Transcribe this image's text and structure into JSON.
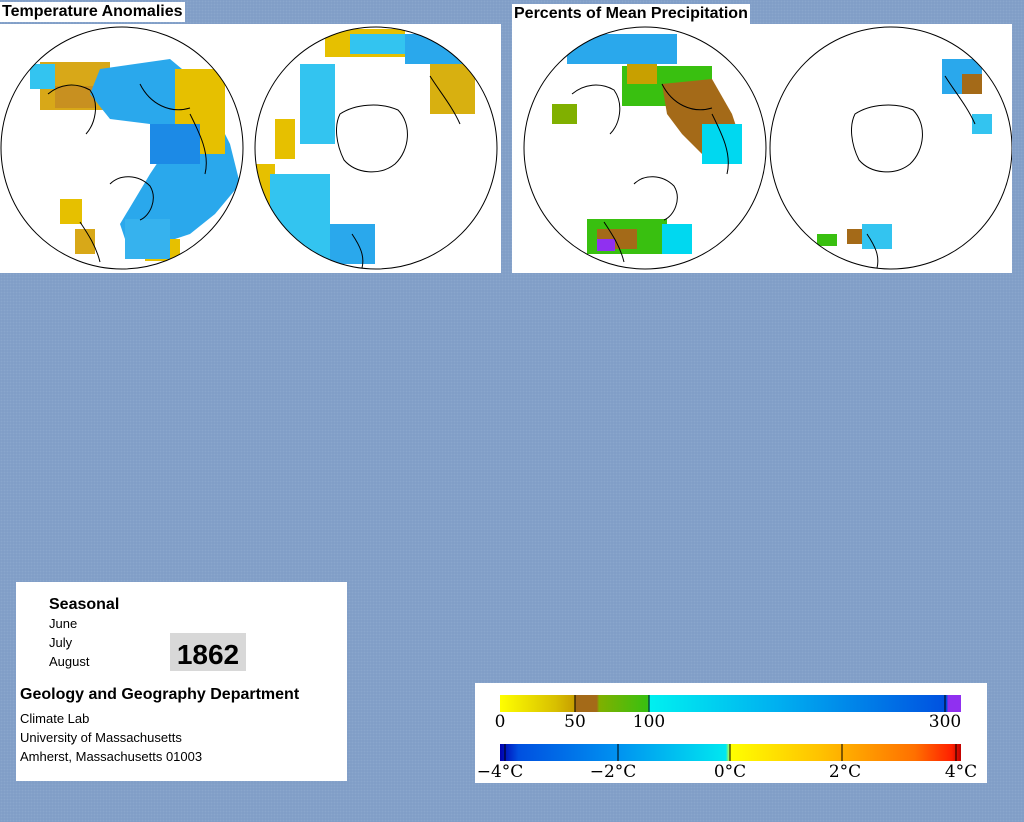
{
  "panels": {
    "temperature": {
      "title": "Temperature Anomalies"
    },
    "precipitation": {
      "title": "Percents of Mean Precipitation"
    }
  },
  "info": {
    "season": "Seasonal",
    "months": [
      "June",
      "July",
      "August"
    ],
    "year": "1862",
    "department": "Geology and Geography Department",
    "lines": [
      "Climate Lab",
      "University of Massachusetts",
      "Amherst, Massachusetts 01003"
    ]
  },
  "legend": {
    "precip_labels": [
      "0",
      "50",
      "100",
      "300"
    ],
    "temp_labels": [
      "−4°C",
      "−2°C",
      "0°C",
      "2°C",
      "4°C"
    ],
    "precip_colors": [
      "#ffff00",
      "#c8a000",
      "#a46a18",
      "#80b000",
      "#39c010",
      "#00e8f0",
      "#0090f0",
      "#0050e0",
      "#9030f0"
    ],
    "temp_colors": [
      "#0000b0",
      "#0050e0",
      "#00b0f0",
      "#00e8f0",
      "#ffff00",
      "#ffc000",
      "#ff7000",
      "#ff2000",
      "#c00000"
    ]
  },
  "colors": {
    "background": "#7f9cc6",
    "anomaly_cool": "#1fb6f0",
    "anomaly_warm": "#e8c800",
    "precip_wet": "#39c010",
    "precip_dry": "#a46a18"
  }
}
